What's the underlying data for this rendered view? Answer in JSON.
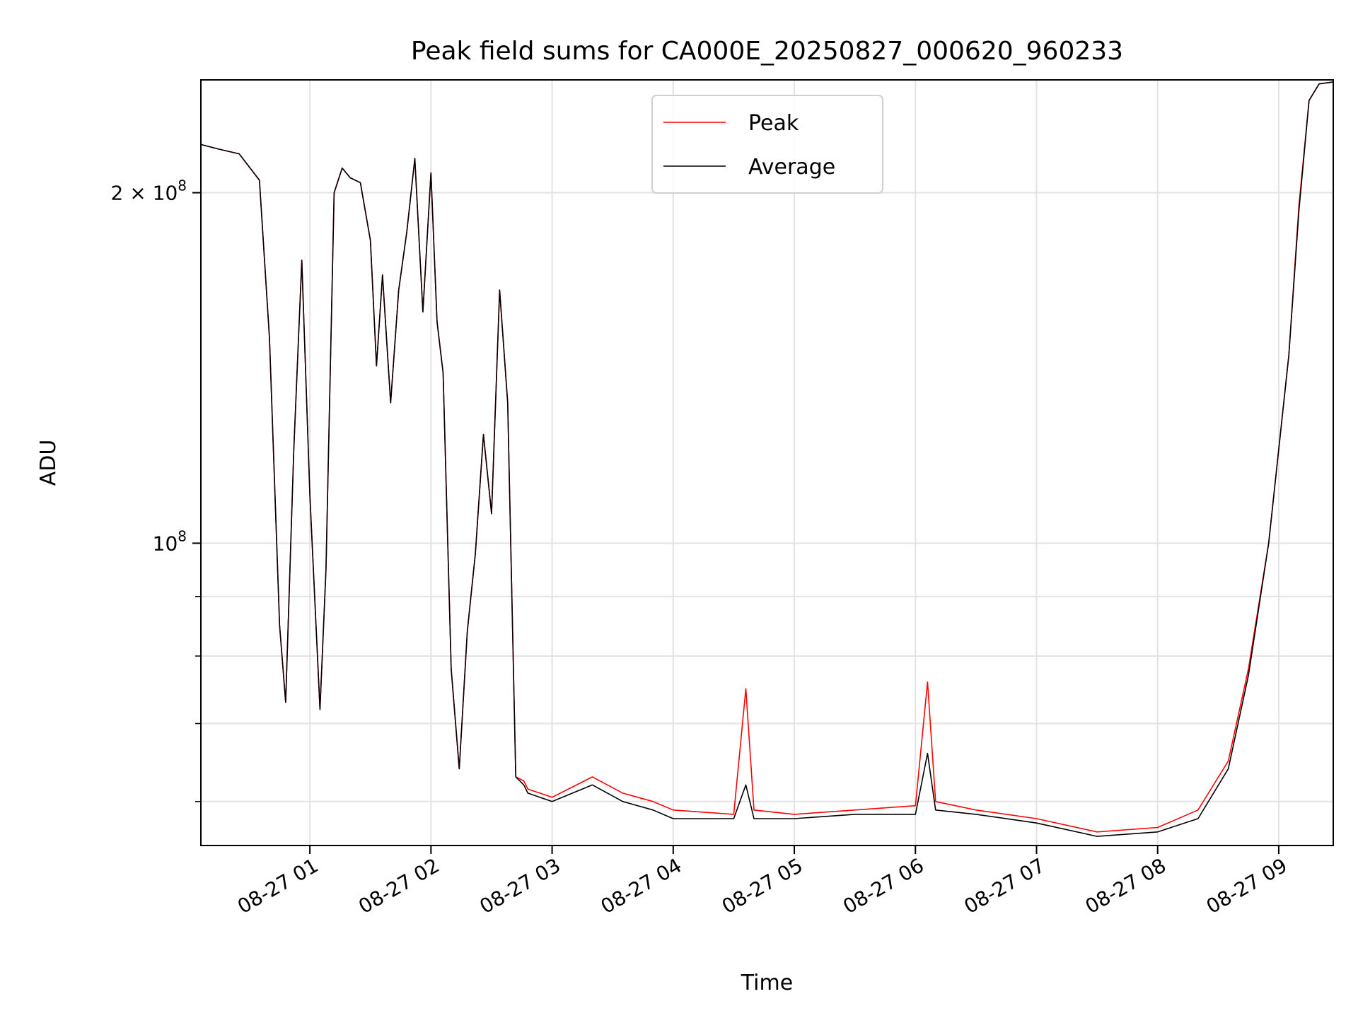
{
  "chart_data": {
    "type": "line",
    "title": "Peak field sums for CA000E_20250827_000620_960233",
    "xlabel": "Time",
    "ylabel": "ADU",
    "y_scale": "log",
    "ylim": [
      55000000,
      250000000
    ],
    "xlim": [
      "2025-08-27 00:06",
      "2025-08-27 09:27"
    ],
    "grid": true,
    "legend_position": "top-center",
    "x_tick_labels": [
      "08-27 01",
      "08-27 02",
      "08-27 03",
      "08-27 04",
      "08-27 05",
      "08-27 06",
      "08-27 07",
      "08-27 08",
      "08-27 09"
    ],
    "x_tick_values": [
      "2025-08-27 01:00",
      "2025-08-27 02:00",
      "2025-08-27 03:00",
      "2025-08-27 04:00",
      "2025-08-27 05:00",
      "2025-08-27 06:00",
      "2025-08-27 07:00",
      "2025-08-27 08:00",
      "2025-08-27 09:00"
    ],
    "y_major_ticks": [
      {
        "value": 100000000,
        "label_base": "10",
        "label_exp": "8",
        "label_prefix": ""
      },
      {
        "value": 200000000,
        "label_base": "10",
        "label_exp": "8",
        "label_prefix": "2 × "
      }
    ],
    "y_minor_ticks": [
      60000000,
      70000000,
      80000000,
      90000000
    ],
    "series": [
      {
        "name": "Peak",
        "color": "#ff0000",
        "x": [
          "2025-08-27 00:06",
          "2025-08-27 00:15",
          "2025-08-27 00:25",
          "2025-08-27 00:35",
          "2025-08-27 00:40",
          "2025-08-27 00:45",
          "2025-08-27 00:48",
          "2025-08-27 00:52",
          "2025-08-27 00:56",
          "2025-08-27 01:00",
          "2025-08-27 01:05",
          "2025-08-27 01:08",
          "2025-08-27 01:12",
          "2025-08-27 01:16",
          "2025-08-27 01:20",
          "2025-08-27 01:25",
          "2025-08-27 01:30",
          "2025-08-27 01:33",
          "2025-08-27 01:36",
          "2025-08-27 01:40",
          "2025-08-27 01:44",
          "2025-08-27 01:48",
          "2025-08-27 01:52",
          "2025-08-27 01:56",
          "2025-08-27 02:00",
          "2025-08-27 02:03",
          "2025-08-27 02:06",
          "2025-08-27 02:10",
          "2025-08-27 02:14",
          "2025-08-27 02:18",
          "2025-08-27 02:22",
          "2025-08-27 02:26",
          "2025-08-27 02:30",
          "2025-08-27 02:34",
          "2025-08-27 02:38",
          "2025-08-27 02:42",
          "2025-08-27 02:46",
          "2025-08-27 02:48",
          "2025-08-27 03:00",
          "2025-08-27 03:20",
          "2025-08-27 03:35",
          "2025-08-27 03:50",
          "2025-08-27 04:00",
          "2025-08-27 04:30",
          "2025-08-27 04:36",
          "2025-08-27 04:40",
          "2025-08-27 05:00",
          "2025-08-27 05:30",
          "2025-08-27 06:00",
          "2025-08-27 06:06",
          "2025-08-27 06:10",
          "2025-08-27 06:30",
          "2025-08-27 07:00",
          "2025-08-27 07:30",
          "2025-08-27 08:00",
          "2025-08-27 08:20",
          "2025-08-27 08:35",
          "2025-08-27 08:45",
          "2025-08-27 08:55",
          "2025-08-27 09:05",
          "2025-08-27 09:10",
          "2025-08-27 09:15",
          "2025-08-27 09:20",
          "2025-08-27 09:27"
        ],
        "y": [
          220000000,
          218000000,
          216000000,
          205000000,
          150000000,
          85000000,
          73000000,
          120000000,
          175000000,
          110000000,
          72000000,
          95000000,
          200000000,
          210000000,
          206000000,
          204000000,
          182000000,
          142000000,
          170000000,
          132000000,
          165000000,
          185000000,
          214000000,
          158000000,
          208000000,
          155000000,
          140000000,
          78000000,
          64000000,
          84000000,
          98000000,
          124000000,
          106000000,
          165000000,
          132000000,
          63000000,
          62500000,
          61500000,
          60500000,
          63000000,
          61000000,
          60000000,
          59000000,
          58500000,
          75000000,
          59000000,
          58500000,
          59000000,
          59500000,
          76000000,
          60000000,
          59000000,
          58000000,
          56500000,
          57000000,
          59000000,
          65000000,
          78000000,
          100000000,
          145000000,
          195000000,
          240000000,
          248000000,
          249000000
        ]
      },
      {
        "name": "Average",
        "color": "#000000",
        "x": [
          "2025-08-27 00:06",
          "2025-08-27 00:15",
          "2025-08-27 00:25",
          "2025-08-27 00:35",
          "2025-08-27 00:40",
          "2025-08-27 00:45",
          "2025-08-27 00:48",
          "2025-08-27 00:52",
          "2025-08-27 00:56",
          "2025-08-27 01:00",
          "2025-08-27 01:05",
          "2025-08-27 01:08",
          "2025-08-27 01:12",
          "2025-08-27 01:16",
          "2025-08-27 01:20",
          "2025-08-27 01:25",
          "2025-08-27 01:30",
          "2025-08-27 01:33",
          "2025-08-27 01:36",
          "2025-08-27 01:40",
          "2025-08-27 01:44",
          "2025-08-27 01:48",
          "2025-08-27 01:52",
          "2025-08-27 01:56",
          "2025-08-27 02:00",
          "2025-08-27 02:03",
          "2025-08-27 02:06",
          "2025-08-27 02:10",
          "2025-08-27 02:14",
          "2025-08-27 02:18",
          "2025-08-27 02:22",
          "2025-08-27 02:26",
          "2025-08-27 02:30",
          "2025-08-27 02:34",
          "2025-08-27 02:38",
          "2025-08-27 02:42",
          "2025-08-27 02:46",
          "2025-08-27 02:48",
          "2025-08-27 03:00",
          "2025-08-27 03:20",
          "2025-08-27 03:35",
          "2025-08-27 03:50",
          "2025-08-27 04:00",
          "2025-08-27 04:30",
          "2025-08-27 04:36",
          "2025-08-27 04:40",
          "2025-08-27 05:00",
          "2025-08-27 05:30",
          "2025-08-27 06:00",
          "2025-08-27 06:06",
          "2025-08-27 06:10",
          "2025-08-27 06:30",
          "2025-08-27 07:00",
          "2025-08-27 07:30",
          "2025-08-27 08:00",
          "2025-08-27 08:20",
          "2025-08-27 08:35",
          "2025-08-27 08:45",
          "2025-08-27 08:55",
          "2025-08-27 09:05",
          "2025-08-27 09:10",
          "2025-08-27 09:15",
          "2025-08-27 09:20",
          "2025-08-27 09:27"
        ],
        "y": [
          220000000,
          218000000,
          216000000,
          205000000,
          150000000,
          85000000,
          73000000,
          120000000,
          175000000,
          110000000,
          72000000,
          95000000,
          200000000,
          210000000,
          206000000,
          204000000,
          182000000,
          142000000,
          170000000,
          132000000,
          165000000,
          185000000,
          214000000,
          158000000,
          208000000,
          155000000,
          140000000,
          78000000,
          64000000,
          84000000,
          98000000,
          124000000,
          106000000,
          165000000,
          132000000,
          63000000,
          62000000,
          61000000,
          60000000,
          62000000,
          60000000,
          59000000,
          58000000,
          58000000,
          62000000,
          58000000,
          58000000,
          58500000,
          58500000,
          66000000,
          59000000,
          58500000,
          57500000,
          56000000,
          56500000,
          58000000,
          64000000,
          77000000,
          100000000,
          145000000,
          193000000,
          240000000,
          248000000,
          249000000
        ]
      }
    ]
  }
}
